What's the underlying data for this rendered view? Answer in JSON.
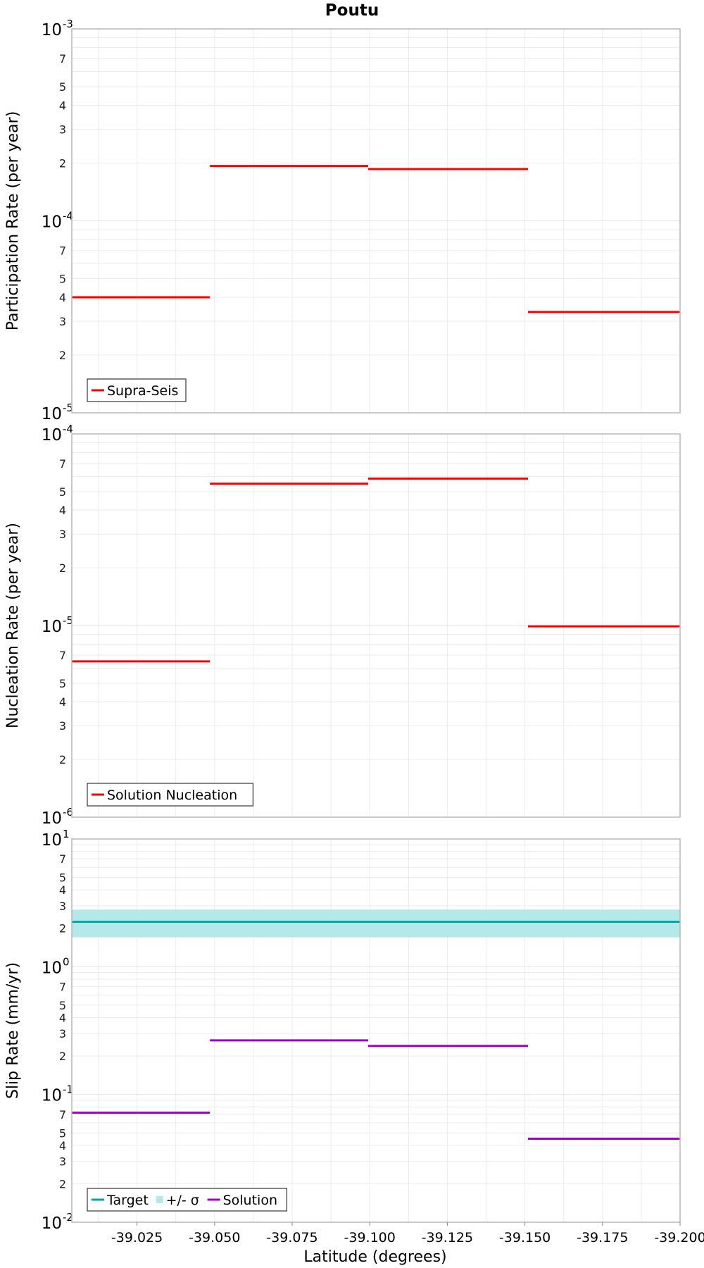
{
  "chart_data": [
    {
      "type": "line",
      "title": "Poutu",
      "ylabel": "Participation Rate (per year)",
      "xlabel": "",
      "yscale": "log",
      "xlim": [
        -39.004,
        -39.2
      ],
      "ylim": [
        1e-05,
        0.001
      ],
      "decade_ticks": [
        {
          "base": "10",
          "exp": "-5"
        },
        {
          "base": "10",
          "exp": "-4"
        },
        {
          "base": "10",
          "exp": "-3"
        }
      ],
      "grid": true,
      "legend_position": "bottom-left",
      "series": [
        {
          "name": "Supra-Seis",
          "color": "#ff0000",
          "segments": [
            {
              "x": [
                -39.004,
                -39.0485
              ],
              "y": 4e-05
            },
            {
              "x": [
                -39.0485,
                -39.0995
              ],
              "y": 0.000193
            },
            {
              "x": [
                -39.0995,
                -39.151
              ],
              "y": 0.000186
            },
            {
              "x": [
                -39.151,
                -39.2
              ],
              "y": 3.35e-05
            }
          ]
        }
      ]
    },
    {
      "type": "line",
      "ylabel": "Nucleation Rate (per year)",
      "xlabel": "",
      "yscale": "log",
      "xlim": [
        -39.004,
        -39.2
      ],
      "ylim": [
        1e-06,
        0.0001
      ],
      "decade_ticks": [
        {
          "base": "10",
          "exp": "-6"
        },
        {
          "base": "10",
          "exp": "-5"
        },
        {
          "base": "10",
          "exp": "-4"
        }
      ],
      "grid": true,
      "legend_position": "bottom-left",
      "series": [
        {
          "name": "Solution Nucleation",
          "color": "#ff0000",
          "segments": [
            {
              "x": [
                -39.004,
                -39.0485
              ],
              "y": 6.5e-06
            },
            {
              "x": [
                -39.0485,
                -39.0995
              ],
              "y": 5.5e-05
            },
            {
              "x": [
                -39.0995,
                -39.151
              ],
              "y": 5.85e-05
            },
            {
              "x": [
                -39.151,
                -39.2
              ],
              "y": 9.9e-06
            }
          ]
        }
      ]
    },
    {
      "type": "line",
      "ylabel": "Slip Rate (mm/yr)",
      "xlabel": "Latitude (degrees)",
      "yscale": "log",
      "xlim": [
        -39.004,
        -39.2
      ],
      "ylim": [
        0.01,
        10
      ],
      "decade_ticks": [
        {
          "base": "10",
          "exp": "-2"
        },
        {
          "base": "10",
          "exp": "-1"
        },
        {
          "base": "10",
          "exp": "0"
        },
        {
          "base": "10",
          "exp": "1"
        }
      ],
      "x_ticks": [
        "-39.025",
        "-39.050",
        "-39.075",
        "-39.100",
        "-39.125",
        "-39.150",
        "-39.175",
        "-39.200"
      ],
      "x_tick_values": [
        -39.025,
        -39.05,
        -39.075,
        -39.1,
        -39.125,
        -39.15,
        -39.175,
        -39.2
      ],
      "grid": true,
      "legend_position": "bottom-left",
      "series": [
        {
          "name": "Target",
          "color": "#00a6a6",
          "segments": [
            {
              "x": [
                -39.004,
                -39.2
              ],
              "y": 2.25
            }
          ]
        },
        {
          "name": "+/- σ",
          "color": "#b5e8e8",
          "band": {
            "x": [
              -39.004,
              -39.2
            ],
            "low": 1.7,
            "high": 2.8
          }
        },
        {
          "name": "Solution",
          "color": "#a000c8",
          "segments": [
            {
              "x": [
                -39.004,
                -39.0485
              ],
              "y": 0.072
            },
            {
              "x": [
                -39.0485,
                -39.0995
              ],
              "y": 0.265
            },
            {
              "x": [
                -39.0995,
                -39.151
              ],
              "y": 0.24
            },
            {
              "x": [
                -39.151,
                -39.2
              ],
              "y": 0.045
            }
          ]
        }
      ]
    }
  ]
}
